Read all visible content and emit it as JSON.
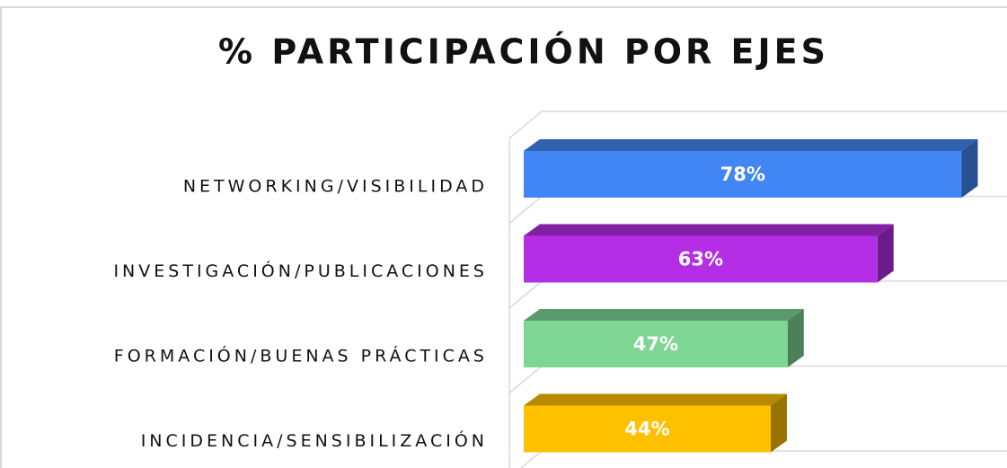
{
  "chart_data": {
    "type": "bar",
    "orientation": "horizontal",
    "title": "% PARTICIPACIÓN POR EJES",
    "categories": [
      "NETWORKING/VISIBILIDAD",
      "INVESTIGACIÓN/PUBLICACIONES",
      "FORMACIÓN/BUENAS PRÁCTICAS",
      "INCIDENCIA/SENSIBILIZACIÓN"
    ],
    "values": [
      78,
      63,
      47,
      44
    ],
    "value_labels": [
      "78%",
      "63%",
      "47%",
      "44%"
    ],
    "colors": [
      "#4285f4",
      "#b42ee6",
      "#7ed694",
      "#ffc000"
    ],
    "xlim": [
      0,
      80
    ]
  }
}
